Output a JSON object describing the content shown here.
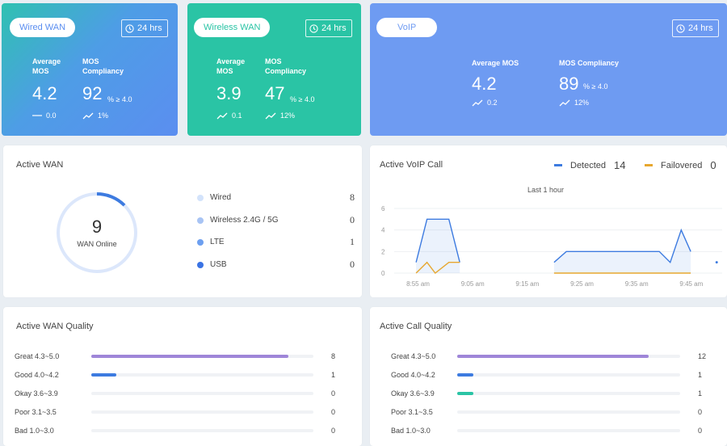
{
  "colors": {
    "wired_bg": "#5b8ef0",
    "wireless_bg": "#2ac4a5",
    "voip_bg": "#6e9bf2",
    "purple": "#9f86d8",
    "blue": "#3d7be0",
    "teal": "#2ac4a5",
    "orange": "#e7a72f"
  },
  "wired_wan": {
    "pill": "Wired WAN",
    "time": "24 hrs",
    "avg_label": "Average MOS",
    "avg_value": "4.2",
    "avg_trend_icon": "flat-line-icon",
    "avg_trend": "0.0",
    "mos_label": "MOS Compliancy",
    "mos_value": "92",
    "mos_unit": "% ≥ 4.0",
    "mos_trend_icon": "trend-up-icon",
    "mos_trend": "1%"
  },
  "wireless_wan": {
    "pill": "Wireless WAN",
    "time": "24 hrs",
    "avg_label": "Average MOS",
    "avg_value": "3.9",
    "avg_trend_icon": "trend-up-icon",
    "avg_trend": "0.1",
    "mos_label": "MOS Compliancy",
    "mos_value": "47",
    "mos_unit": "% ≥ 4.0",
    "mos_trend_icon": "trend-up-icon",
    "mos_trend": "12%"
  },
  "voip": {
    "pill": "VoIP",
    "time": "24 hrs",
    "avg_label": "Average MOS",
    "avg_value": "4.2",
    "avg_trend_icon": "trend-up-icon",
    "avg_trend": "0.2",
    "mos_label": "MOS Compliancy",
    "mos_value": "89",
    "mos_unit": "% ≥ 4.0",
    "mos_trend_icon": "trend-up-icon",
    "mos_trend": "12%"
  },
  "active_wan": {
    "title": "Active WAN",
    "total": "9",
    "total_label": "WAN Online",
    "gauge_fraction": 0.125,
    "items": [
      {
        "name": "Wired",
        "count": "8",
        "color": "#d3e3fb"
      },
      {
        "name": "Wireless 2.4G / 5G",
        "count": "0",
        "color": "#a8c4f4"
      },
      {
        "name": "LTE",
        "count": "1",
        "color": "#6d9ff0"
      },
      {
        "name": "USB",
        "count": "0",
        "color": "#3a73e4"
      }
    ]
  },
  "active_voip": {
    "title": "Active VoIP Call",
    "detected_label": "Detected",
    "detected_count": "14",
    "failovered_label": "Failovered",
    "failovered_count": "0",
    "range_label": "Last 1 hour"
  },
  "chart_data": {
    "type": "area",
    "x": [
      "8:55 am",
      "9:05 am",
      "9:15 am",
      "9:25 am",
      "9:35 am",
      "9:45 am"
    ],
    "ylim": [
      0,
      6
    ],
    "y_ticks": [
      "0",
      "2",
      "4",
      "6"
    ],
    "series": [
      {
        "name": "Detected",
        "color": "#3d7be0",
        "points": [
          [
            0.8,
            1
          ],
          [
            1.2,
            5
          ],
          [
            2.0,
            5
          ],
          [
            2.4,
            1
          ],
          [
            null,
            null
          ],
          [
            5.85,
            1
          ],
          [
            6.3,
            2
          ],
          [
            9.7,
            2
          ],
          [
            10.1,
            1
          ],
          [
            10.5,
            4
          ],
          [
            10.85,
            2
          ],
          [
            null,
            null
          ],
          [
            11.8,
            1
          ]
        ]
      },
      {
        "name": "Failovered",
        "color": "#e7a72f",
        "points": [
          [
            0.8,
            0
          ],
          [
            1.2,
            1
          ],
          [
            1.5,
            0
          ],
          [
            2.0,
            1
          ],
          [
            2.4,
            1
          ],
          [
            null,
            null
          ],
          [
            5.85,
            0
          ],
          [
            10.85,
            0
          ]
        ]
      }
    ]
  },
  "wan_quality": {
    "title": "Active WAN Quality",
    "max": 9,
    "rows": [
      {
        "label": "Great 4.3~5.0",
        "value": 8,
        "display": "8",
        "color": "#9f86d8"
      },
      {
        "label": "Good 4.0~4.2",
        "value": 1,
        "display": "1",
        "color": "#3d7be0"
      },
      {
        "label": "Okay 3.6~3.9",
        "value": 0,
        "display": "0",
        "color": "#2ac4a5"
      },
      {
        "label": "Poor 3.1~3.5",
        "value": 0,
        "display": "0",
        "color": "#e7a72f"
      },
      {
        "label": "Bad 1.0~3.0",
        "value": 0,
        "display": "0",
        "color": "#e05b5b"
      }
    ]
  },
  "call_quality": {
    "title": "Active Call Quality",
    "max": 14,
    "rows": [
      {
        "label": "Great 4.3~5.0",
        "value": 12,
        "display": "12",
        "color": "#9f86d8"
      },
      {
        "label": "Good 4.0~4.2",
        "value": 1,
        "display": "1",
        "color": "#3d7be0"
      },
      {
        "label": "Okay 3.6~3.9",
        "value": 1,
        "display": "1",
        "color": "#2ac4a5"
      },
      {
        "label": "Poor 3.1~3.5",
        "value": 0,
        "display": "0",
        "color": "#e7a72f"
      },
      {
        "label": "Bad 1.0~3.0",
        "value": 0,
        "display": "0",
        "color": "#e05b5b"
      }
    ]
  }
}
